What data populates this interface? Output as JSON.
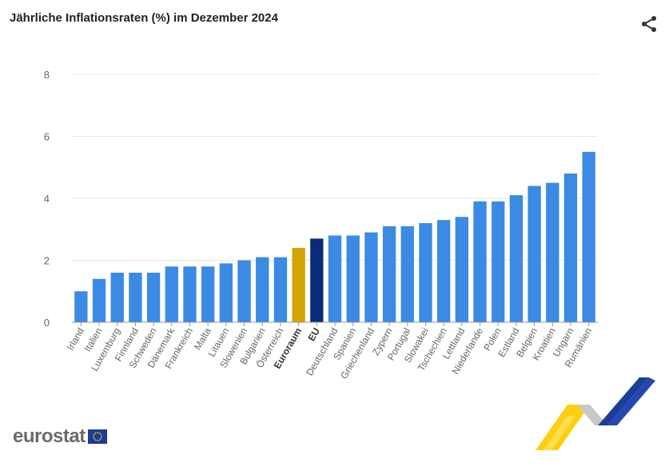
{
  "chart_data": {
    "type": "bar",
    "title": "Jährliche Inflationsraten (%) im Dezember 2024",
    "xlabel": "",
    "ylabel": "",
    "ylim": [
      0,
      8
    ],
    "yticks": [
      0,
      2,
      4,
      6,
      8
    ],
    "grid": true,
    "categories": [
      "Irland",
      "Italien",
      "Luxemburg",
      "Finnland",
      "Schweden",
      "Dänemark",
      "Frankreich",
      "Malta",
      "Litauen",
      "Slowenien",
      "Bulgarien",
      "Österreich",
      "Euroraum",
      "EU",
      "Deutschland",
      "Spanien",
      "Griechenland",
      "Zypern",
      "Portugal",
      "Slowakei",
      "Tschechien",
      "Lettland",
      "Niederlande",
      "Polen",
      "Estland",
      "Belgien",
      "Kroatien",
      "Ungarn",
      "Rumänien"
    ],
    "values": [
      1.0,
      1.4,
      1.6,
      1.6,
      1.6,
      1.8,
      1.8,
      1.8,
      1.9,
      2.0,
      2.1,
      2.1,
      2.4,
      2.7,
      2.8,
      2.8,
      2.9,
      3.1,
      3.1,
      3.2,
      3.3,
      3.4,
      3.9,
      3.9,
      4.1,
      4.4,
      4.5,
      4.8,
      5.5
    ],
    "bold_categories": [
      "Euroraum",
      "EU"
    ],
    "colors": {
      "default": "#3b8ae3",
      "Euroraum": "#d4a306",
      "EU": "#0b2b7a",
      "grid": "#e6e6e6",
      "axis": "#9a9a9a",
      "tick_text": "#666666"
    }
  },
  "icons": {
    "share": "share-icon"
  },
  "branding": {
    "logo_text": "eurostat"
  }
}
